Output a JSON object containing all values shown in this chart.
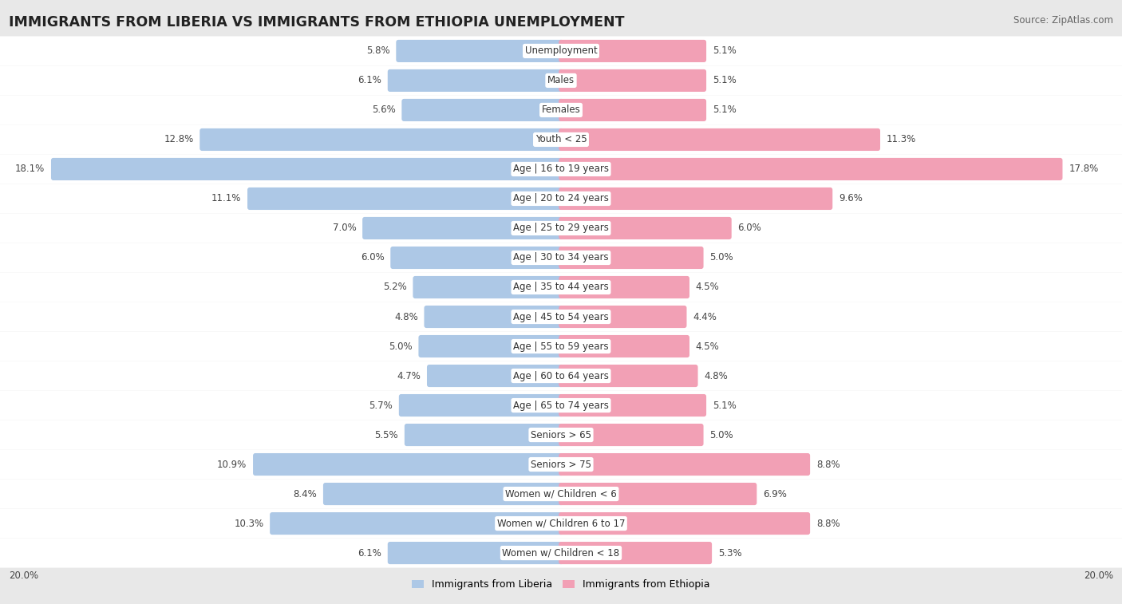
{
  "title": "IMMIGRANTS FROM LIBERIA VS IMMIGRANTS FROM ETHIOPIA UNEMPLOYMENT",
  "source": "Source: ZipAtlas.com",
  "categories": [
    "Unemployment",
    "Males",
    "Females",
    "Youth < 25",
    "Age | 16 to 19 years",
    "Age | 20 to 24 years",
    "Age | 25 to 29 years",
    "Age | 30 to 34 years",
    "Age | 35 to 44 years",
    "Age | 45 to 54 years",
    "Age | 55 to 59 years",
    "Age | 60 to 64 years",
    "Age | 65 to 74 years",
    "Seniors > 65",
    "Seniors > 75",
    "Women w/ Children < 6",
    "Women w/ Children 6 to 17",
    "Women w/ Children < 18"
  ],
  "liberia_values": [
    5.8,
    6.1,
    5.6,
    12.8,
    18.1,
    11.1,
    7.0,
    6.0,
    5.2,
    4.8,
    5.0,
    4.7,
    5.7,
    5.5,
    10.9,
    8.4,
    10.3,
    6.1
  ],
  "ethiopia_values": [
    5.1,
    5.1,
    5.1,
    11.3,
    17.8,
    9.6,
    6.0,
    5.0,
    4.5,
    4.4,
    4.5,
    4.8,
    5.1,
    5.0,
    8.8,
    6.9,
    8.8,
    5.3
  ],
  "liberia_color": "#adc8e6",
  "ethiopia_color": "#f2a0b5",
  "liberia_label": "Immigrants from Liberia",
  "ethiopia_label": "Immigrants from Ethiopia",
  "axis_limit": 20.0,
  "background_color": "#e8e8e8",
  "row_bg_color": "#ffffff",
  "title_fontsize": 12.5,
  "source_fontsize": 8.5,
  "label_fontsize": 8.5,
  "value_fontsize": 8.5
}
